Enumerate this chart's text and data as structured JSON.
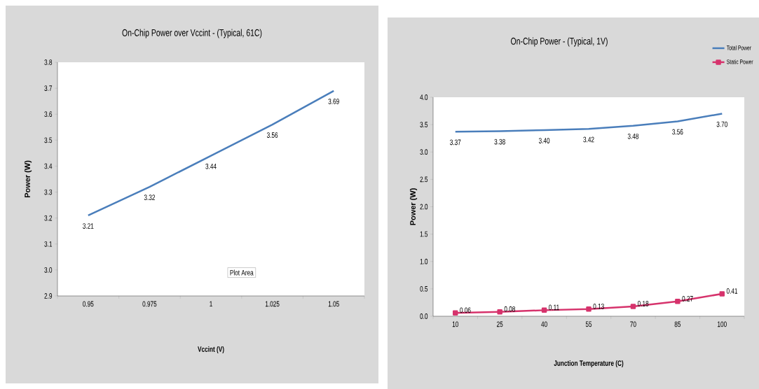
{
  "chart_data": [
    {
      "type": "line",
      "title": "On-Chip Power over Vccint - (Typical, 61C)",
      "xlabel": "Vccint (V)",
      "ylabel": "Power (W)",
      "categories": [
        "0.95",
        "0.975",
        "1",
        "1.025",
        "1.05"
      ],
      "series": [
        {
          "color": "#4a7ebb",
          "values": [
            3.21,
            3.32,
            3.44,
            3.56,
            3.69
          ]
        }
      ],
      "ylim": [
        2.9,
        3.8
      ],
      "yticks": [
        {
          "value": 2.9,
          "label": "2.9"
        },
        {
          "value": 3.0,
          "label": "3.0"
        },
        {
          "value": 3.1,
          "label": "3.1"
        },
        {
          "value": 3.2,
          "label": "3.2"
        },
        {
          "value": 3.3,
          "label": "3.3"
        },
        {
          "value": 3.4,
          "label": "3.4"
        },
        {
          "value": 3.5,
          "label": "3.5"
        },
        {
          "value": 3.6,
          "label": "3.6"
        },
        {
          "value": 3.7,
          "label": "3.7"
        },
        {
          "value": 3.8,
          "label": "3.8"
        }
      ],
      "data_labels": true,
      "marker": "none",
      "legend": false,
      "grid": false,
      "annotations": [
        "Plot Area"
      ]
    },
    {
      "type": "line",
      "title": "On-Chip Power - (Typical, 1V)",
      "xlabel": "Junction Temperature (C)",
      "ylabel": "Power (W)",
      "categories": [
        "10",
        "25",
        "40",
        "55",
        "70",
        "85",
        "100"
      ],
      "series": [
        {
          "name": "Total Power",
          "color": "#4a7ebb",
          "marker": "none",
          "values": [
            3.37,
            3.38,
            3.4,
            3.42,
            3.48,
            3.56,
            3.7
          ],
          "value_labels": [
            "3.37",
            "3.38",
            "3.40",
            "3.42",
            "3.48",
            "3.56",
            "3.70"
          ]
        },
        {
          "name": "Static Power",
          "color": "#d6336c",
          "marker": "square",
          "values": [
            0.06,
            0.08,
            0.11,
            0.13,
            0.18,
            0.27,
            0.41
          ],
          "value_labels": [
            "0.06",
            "0.08",
            "0.11",
            "0.13",
            "0.18",
            "0.27",
            "0.41"
          ]
        }
      ],
      "ylim": [
        0,
        4
      ],
      "yticks": [
        {
          "value": 0,
          "label": "0.0"
        },
        {
          "value": 0.5,
          "label": "0.5"
        },
        {
          "value": 1.0,
          "label": "1.0"
        },
        {
          "value": 1.5,
          "label": "1.5"
        },
        {
          "value": 2.0,
          "label": "2.0"
        },
        {
          "value": 2.5,
          "label": "2.5"
        },
        {
          "value": 3.0,
          "label": "3.0"
        },
        {
          "value": 3.5,
          "label": "3.5"
        },
        {
          "value": 4.0,
          "label": "4.0"
        }
      ],
      "legend": "top right",
      "grid": false
    }
  ]
}
